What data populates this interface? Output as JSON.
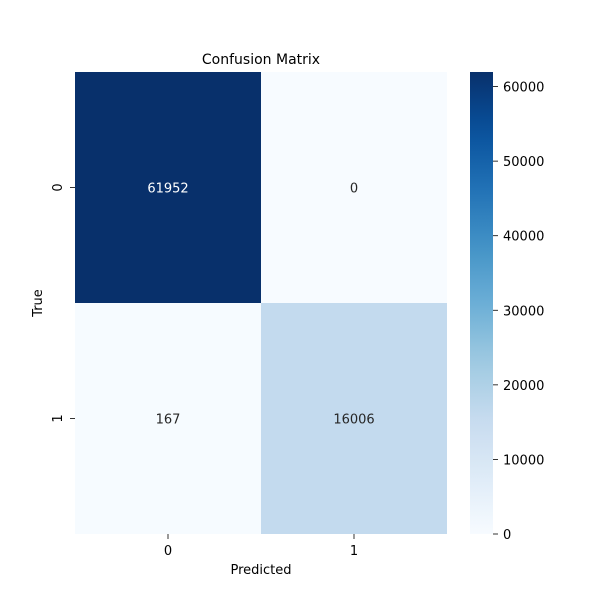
{
  "chart_data": {
    "type": "heatmap",
    "title": "Confusion Matrix",
    "xlabel": "Predicted",
    "ylabel": "True",
    "x_categories": [
      "0",
      "1"
    ],
    "y_categories": [
      "0",
      "1"
    ],
    "values": [
      [
        61952,
        0
      ],
      [
        167,
        16006
      ]
    ],
    "colormap": "Blues",
    "colorbar": {
      "range": [
        0,
        61952
      ],
      "ticks": [
        0,
        10000,
        20000,
        30000,
        40000,
        50000,
        60000
      ],
      "tick_labels": [
        "0",
        "10000",
        "20000",
        "30000",
        "40000",
        "50000",
        "60000"
      ]
    },
    "colors": {
      "light_text": "#ffffff",
      "dark_text": "#262626"
    }
  }
}
